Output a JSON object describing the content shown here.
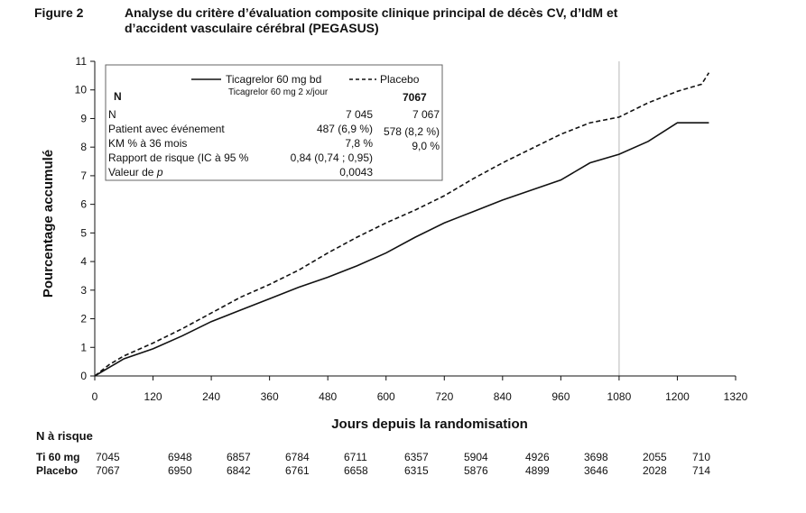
{
  "figure": {
    "label": "Figure 2",
    "title_line1": "Analyse du critère d’évaluation composite clinique principal de décès CV, d’IdM et",
    "title_line2": "d’accident vasculaire cérébral (PEGASUS)"
  },
  "chart_data": {
    "type": "line",
    "xlabel": "Jours depuis la randomisation",
    "ylabel": "Pourcentage accumulé",
    "xlim": [
      0,
      1320
    ],
    "ylim": [
      0,
      11
    ],
    "xticks": [
      0,
      120,
      240,
      360,
      480,
      600,
      720,
      840,
      960,
      1080,
      1200,
      1320
    ],
    "yticks": [
      0,
      1,
      2,
      3,
      4,
      5,
      6,
      7,
      8,
      9,
      10,
      11
    ],
    "reference_line_x": 1080,
    "series": [
      {
        "name": "Ticagrelor 60 mg bd",
        "style": "solid",
        "color": "#111111",
        "x": [
          0,
          30,
          60,
          120,
          180,
          240,
          300,
          360,
          420,
          480,
          540,
          600,
          660,
          720,
          780,
          840,
          900,
          960,
          1020,
          1080,
          1140,
          1200,
          1265
        ],
        "y": [
          0,
          0.3,
          0.6,
          0.95,
          1.4,
          1.9,
          2.3,
          2.7,
          3.1,
          3.45,
          3.85,
          4.3,
          4.85,
          5.35,
          5.75,
          6.15,
          6.5,
          6.85,
          7.45,
          7.75,
          8.2,
          8.85,
          8.85
        ]
      },
      {
        "name": "Placebo",
        "style": "dashed",
        "color": "#111111",
        "x": [
          0,
          30,
          60,
          120,
          180,
          240,
          300,
          360,
          420,
          480,
          540,
          600,
          660,
          720,
          780,
          840,
          900,
          960,
          1020,
          1080,
          1140,
          1200,
          1250,
          1265
        ],
        "y": [
          0,
          0.4,
          0.7,
          1.15,
          1.65,
          2.2,
          2.75,
          3.2,
          3.7,
          4.3,
          4.85,
          5.35,
          5.8,
          6.3,
          6.9,
          7.45,
          7.95,
          8.45,
          8.85,
          9.05,
          9.55,
          9.95,
          10.2,
          10.6
        ]
      }
    ],
    "legend": {
      "entries": [
        "Ticagrelor 60 mg bd",
        "Placebo"
      ],
      "sub_labels": [
        "N",
        "Ticagrelor 60 mg 2 x/jour",
        "7067"
      ],
      "rows": [
        {
          "label": "N",
          "tica": "7 045",
          "placebo": "7 067"
        },
        {
          "label": "Patient avec événement",
          "tica": "487 (6,9 %)",
          "placebo": "578 (8,2 %)"
        },
        {
          "label": "KM % à 36 mois",
          "tica": "7,8 %",
          "placebo": "9,0 %"
        },
        {
          "label": "Rapport de risque (IC à 95 %",
          "tica": "0,84 (0,74 ; 0,95)",
          "placebo": ""
        },
        {
          "label": "Valeur de p",
          "tica": "0,0043",
          "placebo": ""
        }
      ]
    }
  },
  "risk_table": {
    "title": "N à risque",
    "rows": [
      {
        "label": "Ti 60 mg",
        "values": [
          "7045",
          "6948",
          "6857",
          "6784",
          "6711",
          "6357",
          "5904",
          "4926",
          "3698",
          "2055",
          "710"
        ]
      },
      {
        "label": "Placebo",
        "values": [
          "7067",
          "6950",
          "6842",
          "6761",
          "6658",
          "6315",
          "5876",
          "4899",
          "3646",
          "2028",
          "714"
        ]
      }
    ]
  }
}
